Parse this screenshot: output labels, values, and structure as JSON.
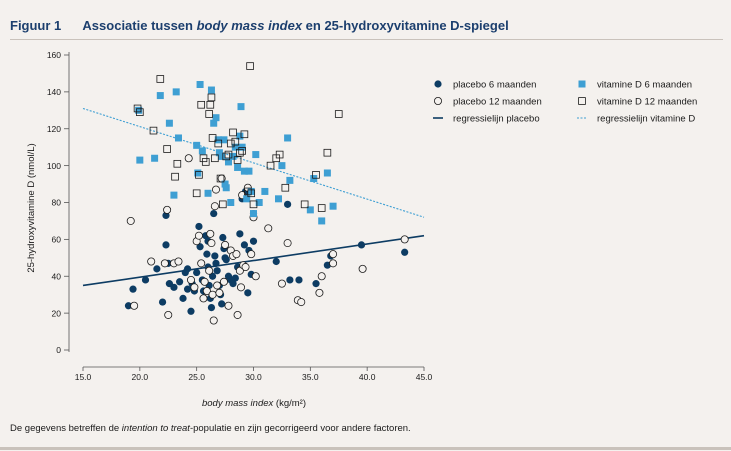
{
  "figure": {
    "number": "Figuur 1",
    "title_part1": "Associatie tussen ",
    "title_italic": "body mass index",
    "title_part2": " en 25-hydroxyvitamine D-spiegel"
  },
  "footnote": {
    "part1": "De gegevens betreffen de ",
    "italic": "intention to treat",
    "part2": "-populatie en zijn gecorrigeerd voor andere factoren."
  },
  "colors": {
    "placebo": "#0d3c63",
    "vitamineD": "#3e9fd3",
    "axis": "#555555"
  },
  "chart_data": {
    "type": "scatter",
    "title": "",
    "xlabel_italic": "body mass index",
    "xlabel_unit": " (kg/m²)",
    "ylabel": "25-hydroxyvitamine D (nmol/L)",
    "xlim": [
      15,
      45
    ],
    "ylim": [
      0,
      160
    ],
    "xticks": [
      15,
      20,
      25,
      30,
      35,
      40,
      45
    ],
    "xtick_labels": [
      "15.0",
      "20.0",
      "25.0",
      "30.0",
      "35.0",
      "40.0",
      "45.0"
    ],
    "yticks": [
      0,
      20,
      40,
      60,
      80,
      100,
      120,
      140,
      160
    ],
    "ytick_labels": [
      "0",
      "20",
      "40",
      "60",
      "80",
      "100",
      "120",
      "140",
      "160"
    ],
    "grid": false,
    "legend_position": "top-right",
    "series": [
      {
        "name": "placebo 6 maanden",
        "marker": "filled-circle",
        "points": [
          [
            19.0,
            24
          ],
          [
            19.4,
            33
          ],
          [
            20.5,
            38
          ],
          [
            21.5,
            44
          ],
          [
            22.3,
            57
          ],
          [
            22.3,
            73
          ],
          [
            22.6,
            36
          ],
          [
            23.0,
            34
          ],
          [
            23.5,
            37
          ],
          [
            23.8,
            28
          ],
          [
            24.2,
            44
          ],
          [
            24.5,
            21
          ],
          [
            24.6,
            36
          ],
          [
            24.8,
            32
          ],
          [
            25.0,
            42
          ],
          [
            25.2,
            67
          ],
          [
            25.3,
            56
          ],
          [
            25.4,
            47
          ],
          [
            25.5,
            38
          ],
          [
            25.6,
            32
          ],
          [
            25.8,
            62
          ],
          [
            25.9,
            52
          ],
          [
            26.0,
            59
          ],
          [
            26.0,
            45
          ],
          [
            26.1,
            35
          ],
          [
            26.2,
            28
          ],
          [
            26.3,
            23
          ],
          [
            26.4,
            40
          ],
          [
            26.5,
            74
          ],
          [
            26.6,
            51
          ],
          [
            26.7,
            47
          ],
          [
            26.8,
            43
          ],
          [
            27.0,
            35
          ],
          [
            27.1,
            30
          ],
          [
            27.2,
            25
          ],
          [
            27.3,
            61
          ],
          [
            27.4,
            55
          ],
          [
            27.5,
            50
          ],
          [
            27.6,
            49
          ],
          [
            27.8,
            40
          ],
          [
            28.0,
            38
          ],
          [
            28.2,
            36
          ],
          [
            28.4,
            39
          ],
          [
            28.6,
            45
          ],
          [
            28.8,
            63
          ],
          [
            29.0,
            82
          ],
          [
            29.2,
            57
          ],
          [
            29.3,
            86
          ],
          [
            29.5,
            31
          ],
          [
            29.6,
            54
          ],
          [
            29.8,
            41
          ],
          [
            30.0,
            74
          ],
          [
            30.0,
            59
          ],
          [
            32.0,
            48
          ],
          [
            33.0,
            79
          ],
          [
            33.2,
            38
          ],
          [
            34.0,
            38
          ],
          [
            35.5,
            36
          ],
          [
            36.5,
            46
          ],
          [
            36.8,
            51
          ],
          [
            39.5,
            57
          ],
          [
            43.3,
            53
          ],
          [
            22.0,
            26
          ],
          [
            22.5,
            47
          ],
          [
            24.0,
            42
          ],
          [
            24.2,
            33
          ]
        ]
      },
      {
        "name": "placebo 12 maanden",
        "marker": "open-circle",
        "points": [
          [
            19.2,
            70
          ],
          [
            19.5,
            24
          ],
          [
            21.0,
            48
          ],
          [
            22.2,
            47
          ],
          [
            22.4,
            76
          ],
          [
            22.5,
            19
          ],
          [
            23.0,
            47
          ],
          [
            23.4,
            48
          ],
          [
            24.3,
            104
          ],
          [
            24.5,
            38
          ],
          [
            24.8,
            34
          ],
          [
            25.0,
            59
          ],
          [
            25.2,
            62
          ],
          [
            25.4,
            47
          ],
          [
            25.6,
            28
          ],
          [
            25.7,
            37
          ],
          [
            25.9,
            32
          ],
          [
            26.1,
            43
          ],
          [
            26.2,
            63
          ],
          [
            26.3,
            58
          ],
          [
            26.4,
            30
          ],
          [
            26.5,
            16
          ],
          [
            26.6,
            78
          ],
          [
            26.7,
            87
          ],
          [
            26.8,
            35
          ],
          [
            27.0,
            31
          ],
          [
            27.2,
            93
          ],
          [
            27.4,
            37
          ],
          [
            27.5,
            57
          ],
          [
            27.8,
            24
          ],
          [
            28.0,
            54
          ],
          [
            28.2,
            51
          ],
          [
            28.5,
            52
          ],
          [
            28.6,
            19
          ],
          [
            28.8,
            43
          ],
          [
            28.9,
            34
          ],
          [
            29.0,
            84
          ],
          [
            29.1,
            46
          ],
          [
            29.3,
            45
          ],
          [
            29.5,
            88
          ],
          [
            29.8,
            52
          ],
          [
            30.0,
            72
          ],
          [
            30.2,
            40
          ],
          [
            31.3,
            66
          ],
          [
            32.5,
            36
          ],
          [
            33.0,
            58
          ],
          [
            33.9,
            27
          ],
          [
            34.2,
            26
          ],
          [
            35.8,
            31
          ],
          [
            36.0,
            40
          ],
          [
            37.0,
            52
          ],
          [
            37.0,
            47
          ],
          [
            39.6,
            44
          ],
          [
            43.3,
            60
          ]
        ]
      },
      {
        "name": "vitamine D 6 maanden",
        "marker": "filled-square",
        "points": [
          [
            19.9,
            130
          ],
          [
            20.0,
            103
          ],
          [
            21.3,
            104
          ],
          [
            21.8,
            138
          ],
          [
            22.6,
            123
          ],
          [
            23.0,
            84
          ],
          [
            23.2,
            140
          ],
          [
            23.4,
            115
          ],
          [
            25.0,
            111
          ],
          [
            25.1,
            96
          ],
          [
            25.3,
            144
          ],
          [
            25.5,
            108
          ],
          [
            26.0,
            85
          ],
          [
            26.3,
            141
          ],
          [
            26.5,
            123
          ],
          [
            26.7,
            126
          ],
          [
            26.9,
            114
          ],
          [
            27.0,
            107
          ],
          [
            27.2,
            105
          ],
          [
            27.4,
            114
          ],
          [
            27.5,
            90
          ],
          [
            27.6,
            88
          ],
          [
            27.8,
            102
          ],
          [
            28.0,
            80
          ],
          [
            28.2,
            105
          ],
          [
            28.4,
            110
          ],
          [
            28.6,
            99
          ],
          [
            28.8,
            116
          ],
          [
            28.9,
            132
          ],
          [
            29.0,
            110
          ],
          [
            29.2,
            97
          ],
          [
            29.4,
            82
          ],
          [
            29.6,
            97
          ],
          [
            29.8,
            86
          ],
          [
            30.0,
            74
          ],
          [
            30.2,
            106
          ],
          [
            30.5,
            80
          ],
          [
            31.0,
            86
          ],
          [
            32.5,
            100
          ],
          [
            33.0,
            115
          ],
          [
            33.2,
            92
          ],
          [
            35.0,
            76
          ],
          [
            35.3,
            93
          ],
          [
            36.0,
            70
          ],
          [
            36.5,
            96
          ],
          [
            37.0,
            78
          ],
          [
            32.2,
            82
          ]
        ]
      },
      {
        "name": "vitamine D 12 maanden",
        "marker": "open-square",
        "points": [
          [
            19.8,
            131
          ],
          [
            20.0,
            129
          ],
          [
            21.2,
            119
          ],
          [
            21.8,
            147
          ],
          [
            22.4,
            109
          ],
          [
            23.1,
            94
          ],
          [
            23.3,
            101
          ],
          [
            25.0,
            85
          ],
          [
            25.2,
            95
          ],
          [
            25.4,
            133
          ],
          [
            25.6,
            104
          ],
          [
            25.8,
            102
          ],
          [
            26.1,
            128
          ],
          [
            26.2,
            133
          ],
          [
            26.3,
            137
          ],
          [
            26.4,
            115
          ],
          [
            26.6,
            104
          ],
          [
            26.9,
            112
          ],
          [
            27.1,
            93
          ],
          [
            27.3,
            79
          ],
          [
            27.6,
            105
          ],
          [
            27.8,
            106
          ],
          [
            28.0,
            112
          ],
          [
            28.2,
            118
          ],
          [
            28.4,
            113
          ],
          [
            28.6,
            103
          ],
          [
            28.8,
            107
          ],
          [
            29.0,
            108
          ],
          [
            29.2,
            117
          ],
          [
            29.5,
            86
          ],
          [
            29.7,
            154
          ],
          [
            29.8,
            85
          ],
          [
            30.0,
            79
          ],
          [
            31.5,
            100
          ],
          [
            32.0,
            104
          ],
          [
            32.3,
            106
          ],
          [
            32.8,
            88
          ],
          [
            34.5,
            79
          ],
          [
            35.5,
            95
          ],
          [
            36.0,
            77
          ],
          [
            36.5,
            107
          ],
          [
            37.5,
            128
          ]
        ]
      }
    ],
    "regression_lines": [
      {
        "name": "regressielijn placebo",
        "style": "solid",
        "from": [
          15,
          35
        ],
        "to": [
          45,
          62
        ]
      },
      {
        "name": "regressielijn vitamine D",
        "style": "dotted",
        "from": [
          15,
          131
        ],
        "to": [
          45,
          72
        ]
      }
    ],
    "legend": [
      {
        "label": "placebo 6 maanden",
        "marker": "filled-circle"
      },
      {
        "label": "vitamine D 6 maanden",
        "marker": "filled-square"
      },
      {
        "label": "placebo 12 maanden",
        "marker": "open-circle"
      },
      {
        "label": "vitamine D 12 maanden",
        "marker": "open-square"
      },
      {
        "label": "regressielijn placebo",
        "marker": "solid-line"
      },
      {
        "label": "regressielijn vitamine D",
        "marker": "dotted-line"
      }
    ]
  }
}
